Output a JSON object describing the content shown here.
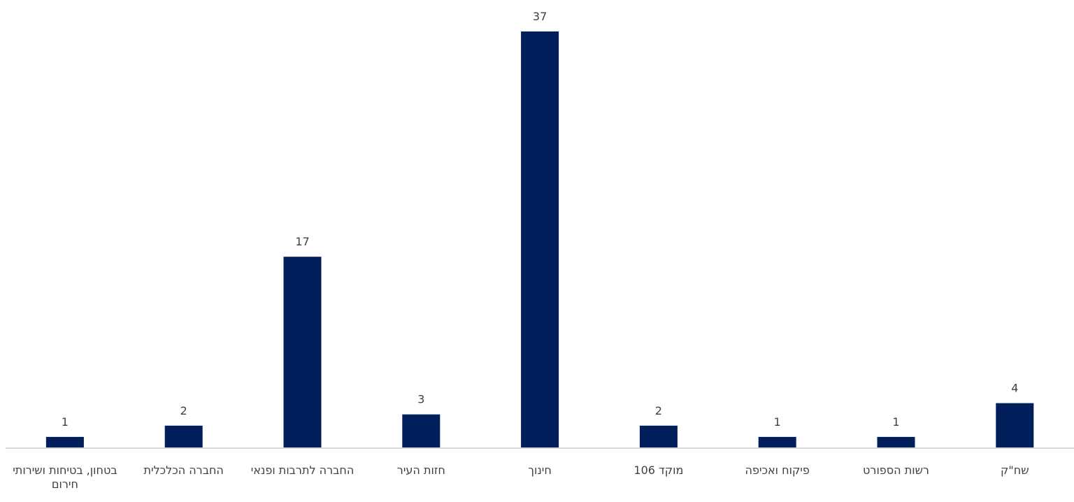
{
  "chart_data": {
    "type": "bar",
    "categories": [
      "בטחון, בטיחות ושירותי חירום",
      "החברה הכלכלית",
      "החברה לתרבות ופנאי",
      "חזות העיר",
      "חינוך",
      "מוקד 106",
      "פיקוח ואכיפה",
      "רשות הספורט",
      "שח\"ק"
    ],
    "values": [
      1,
      2,
      17,
      3,
      37,
      2,
      1,
      1,
      4
    ],
    "data_labels": [
      "1",
      "2",
      "17",
      "3",
      "37",
      "2",
      "1",
      "1",
      "4"
    ],
    "ylim": [
      0,
      37
    ],
    "grid": false,
    "legend": "none",
    "colors": {
      "bar": "#001f5b",
      "axis": "#d9d9d9",
      "text": "#404040"
    }
  }
}
